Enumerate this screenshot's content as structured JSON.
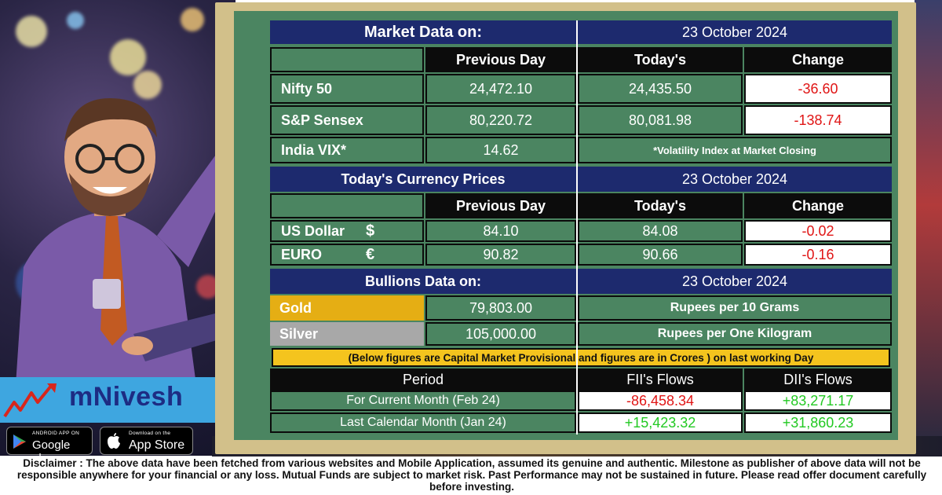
{
  "colors": {
    "board_green": "#4b8561",
    "header_navy": "#1d2a6e",
    "negative_red": "#e01515",
    "positive_green": "#22c922",
    "gold": "#e5ae14",
    "silver": "#a8a8a8",
    "notice_yellow": "#f4c41e",
    "brand_blue": "#1d2c83"
  },
  "market": {
    "title": "Market Data on:",
    "date": "23 October 2024",
    "col_previous": "Previous Day",
    "col_today": "Today's",
    "col_change": "Change",
    "rows": [
      {
        "name": "Nifty 50",
        "previous": "24,472.10",
        "today": "24,435.50",
        "change": "-36.60"
      },
      {
        "name": "S&P Sensex",
        "previous": "80,220.72",
        "today": "80,081.98",
        "change": "-138.74"
      },
      {
        "name": "India VIX*",
        "previous": "14.62"
      }
    ],
    "vix_note": "*Volatility Index at Market Closing"
  },
  "currency": {
    "title": "Today's Currency Prices",
    "date": "23 October 2024",
    "col_previous": "Previous Day",
    "col_today": "Today's",
    "col_change": "Change",
    "rows": [
      {
        "name": "US Dollar",
        "symbol": "$",
        "previous": "84.10",
        "today": "84.08",
        "change": "-0.02"
      },
      {
        "name": "EURO",
        "symbol": "€",
        "previous": "90.82",
        "today": "90.66",
        "change": "-0.16"
      }
    ]
  },
  "bullion": {
    "title": "Bullions Data on:",
    "date": "23 October 2024",
    "rows": [
      {
        "name": "Gold",
        "value": "79,803.00",
        "unit": "Rupees per 10 Grams"
      },
      {
        "name": "Silver",
        "value": "105,000.00",
        "unit": "Rupees per One Kilogram"
      }
    ]
  },
  "notice": "(Below figures are Capital Market Provisional and figures are in Crores ) on last working Day",
  "flows": {
    "col_period": "Period",
    "col_fii": "FII's Flows",
    "col_dii": "DII's Flows",
    "rows": [
      {
        "period": "For Current Month (Feb 24)",
        "fii": "-86,458.34",
        "dii": "+83,271.17"
      },
      {
        "period": "Last Calendar Month (Jan 24)",
        "fii": "+15,423.32",
        "dii": "+31,860.23"
      }
    ]
  },
  "brand": {
    "name": "mNivesh",
    "google_small": "ANDROID APP ON",
    "google_big": "Google play",
    "apple_small": "Download on the",
    "apple_big": "App Store"
  },
  "disclaimer": "Disclaimer : The above data have been fetched from various websites and Mobile Application, assumed its genuine and authentic. Milestone as publisher of above data will not be responsible anywhere for your financial or any loss. Mutual Funds are subject to market risk. Past Performance may not be sustained in future. Please read offer document carefully before investing."
}
